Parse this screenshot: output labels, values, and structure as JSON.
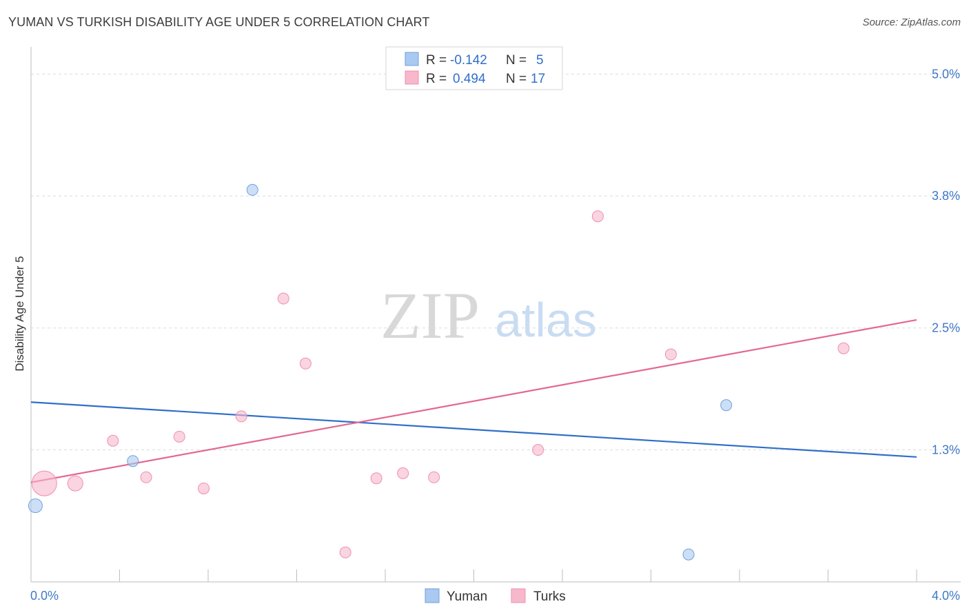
{
  "header": {
    "title": "YUMAN VS TURKISH DISABILITY AGE UNDER 5 CORRELATION CHART",
    "source": "Source: ZipAtlas.com"
  },
  "watermark": {
    "zip": "ZIP",
    "atlas": "atlas"
  },
  "legend": {
    "rows": [
      {
        "r_label": "R =",
        "r_value": "-0.142",
        "n_label": "N =",
        "n_value": "5",
        "color": "#aac9f0"
      },
      {
        "r_label": "R =",
        "r_value": "0.494",
        "n_label": "N =",
        "n_value": "17",
        "color": "#f7b8cb"
      }
    ]
  },
  "chart_data": {
    "type": "scatter",
    "title": "YUMAN VS TURKISH DISABILITY AGE UNDER 5 CORRELATION CHART",
    "xlabel": "",
    "ylabel": "Disability Age Under 5",
    "xlim": [
      0,
      4.0
    ],
    "ylim": [
      0,
      5.2
    ],
    "x_tick_labels": [
      "0.0%",
      "4.0%"
    ],
    "y_ticks": [
      1.3,
      2.5,
      3.8,
      5.0
    ],
    "y_tick_labels": [
      "1.3%",
      "2.5%",
      "3.8%",
      "5.0%"
    ],
    "grid": true,
    "series": [
      {
        "name": "Yuman",
        "color": "#aac9f0",
        "edge": "#6f9fdc",
        "line_color": "#2f6fc9",
        "points": [
          {
            "x": 0.02,
            "y": 0.75,
            "size": "large"
          },
          {
            "x": 0.46,
            "y": 1.19,
            "size": "small"
          },
          {
            "x": 1.0,
            "y": 3.86,
            "size": "small"
          },
          {
            "x": 2.97,
            "y": 0.27,
            "size": "small"
          },
          {
            "x": 3.14,
            "y": 1.74,
            "size": "small"
          }
        ],
        "trend": {
          "x0": 0.0,
          "y0": 1.77,
          "x1": 4.0,
          "y1": 1.23
        }
      },
      {
        "name": "Turks",
        "color": "#f7b8cb",
        "edge": "#ee8fad",
        "line_color": "#e4678f",
        "points": [
          {
            "x": 0.06,
            "y": 0.97,
            "size": "xlarge"
          },
          {
            "x": 0.2,
            "y": 0.97,
            "size": "medium"
          },
          {
            "x": 0.37,
            "y": 1.39,
            "size": "small"
          },
          {
            "x": 0.52,
            "y": 1.03,
            "size": "small"
          },
          {
            "x": 0.67,
            "y": 1.43,
            "size": "small"
          },
          {
            "x": 0.78,
            "y": 0.92,
            "size": "small"
          },
          {
            "x": 0.95,
            "y": 1.63,
            "size": "small"
          },
          {
            "x": 1.14,
            "y": 2.79,
            "size": "small"
          },
          {
            "x": 1.24,
            "y": 2.15,
            "size": "small"
          },
          {
            "x": 1.42,
            "y": 0.29,
            "size": "small"
          },
          {
            "x": 1.56,
            "y": 1.02,
            "size": "small"
          },
          {
            "x": 1.68,
            "y": 1.07,
            "size": "small"
          },
          {
            "x": 1.82,
            "y": 1.03,
            "size": "small"
          },
          {
            "x": 2.29,
            "y": 1.3,
            "size": "small"
          },
          {
            "x": 2.56,
            "y": 3.6,
            "size": "small"
          },
          {
            "x": 2.89,
            "y": 2.24,
            "size": "small"
          },
          {
            "x": 3.67,
            "y": 2.3,
            "size": "small"
          }
        ],
        "trend": {
          "x0": 0.0,
          "y0": 0.98,
          "x1": 4.0,
          "y1": 2.58
        }
      }
    ]
  }
}
